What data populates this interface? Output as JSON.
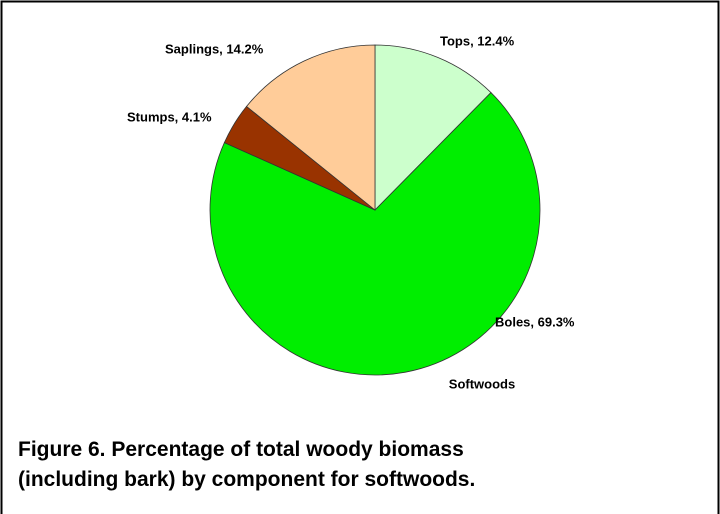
{
  "chart_data": {
    "type": "pie",
    "categories": [
      "Tops",
      "Boles",
      "Stumps",
      "Saplings"
    ],
    "values": [
      12.4,
      69.3,
      4.1,
      14.2
    ],
    "value_labels": [
      "Tops, 12.4%",
      "Boles, 69.3%",
      "Stumps, 4.1%",
      "Saplings, 14.2%"
    ],
    "colors": [
      "#ccffcc",
      "#00ee00",
      "#993300",
      "#ffcc99"
    ],
    "subtitle": "Softwoods",
    "caption": "Figure 6. Percentage of total woody biomass (including bark) by component for softwoods."
  }
}
